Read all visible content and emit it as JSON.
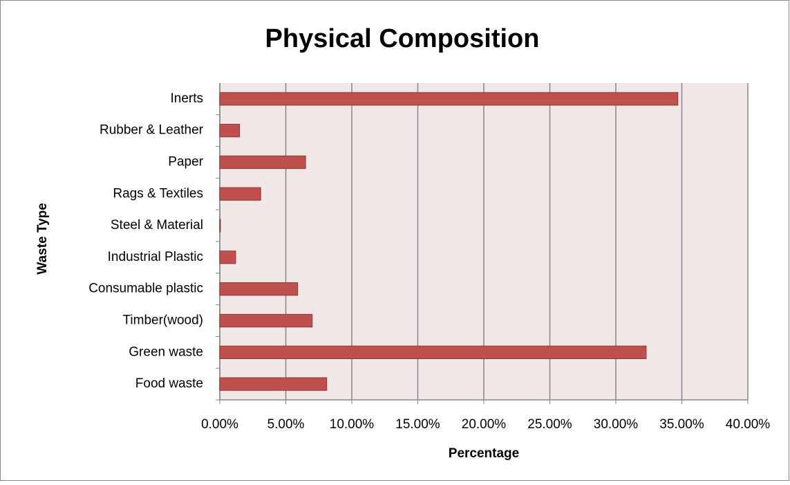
{
  "chart_data": {
    "type": "bar",
    "orientation": "horizontal",
    "title": "Physical  Composition",
    "x_label": "Percentage",
    "y_label": "Waste Type",
    "categories": [
      "Food waste",
      "Green waste",
      "Timber(wood)",
      "Consumable plastic",
      "Industrial Plastic",
      "Steel & Material",
      "Rags & Textiles",
      "Paper",
      "Rubber & Leather",
      "Inerts"
    ],
    "values": [
      8.1,
      32.3,
      7.0,
      5.9,
      1.2,
      0.05,
      3.1,
      6.5,
      1.5,
      34.7
    ],
    "color": "#c0504d",
    "xlim": [
      0,
      40
    ],
    "xticks": [
      {
        "value": 0,
        "label": "0.00%"
      },
      {
        "value": 5,
        "label": "5.00%"
      },
      {
        "value": 10,
        "label": "10.00%"
      },
      {
        "value": 15,
        "label": "15.00%"
      },
      {
        "value": 20,
        "label": "20.00%"
      },
      {
        "value": 25,
        "label": "25.00%"
      },
      {
        "value": 30,
        "label": "30.00%"
      },
      {
        "value": 35,
        "label": "35.00%"
      },
      {
        "value": 40,
        "label": "40.00%"
      }
    ],
    "grid": true
  }
}
